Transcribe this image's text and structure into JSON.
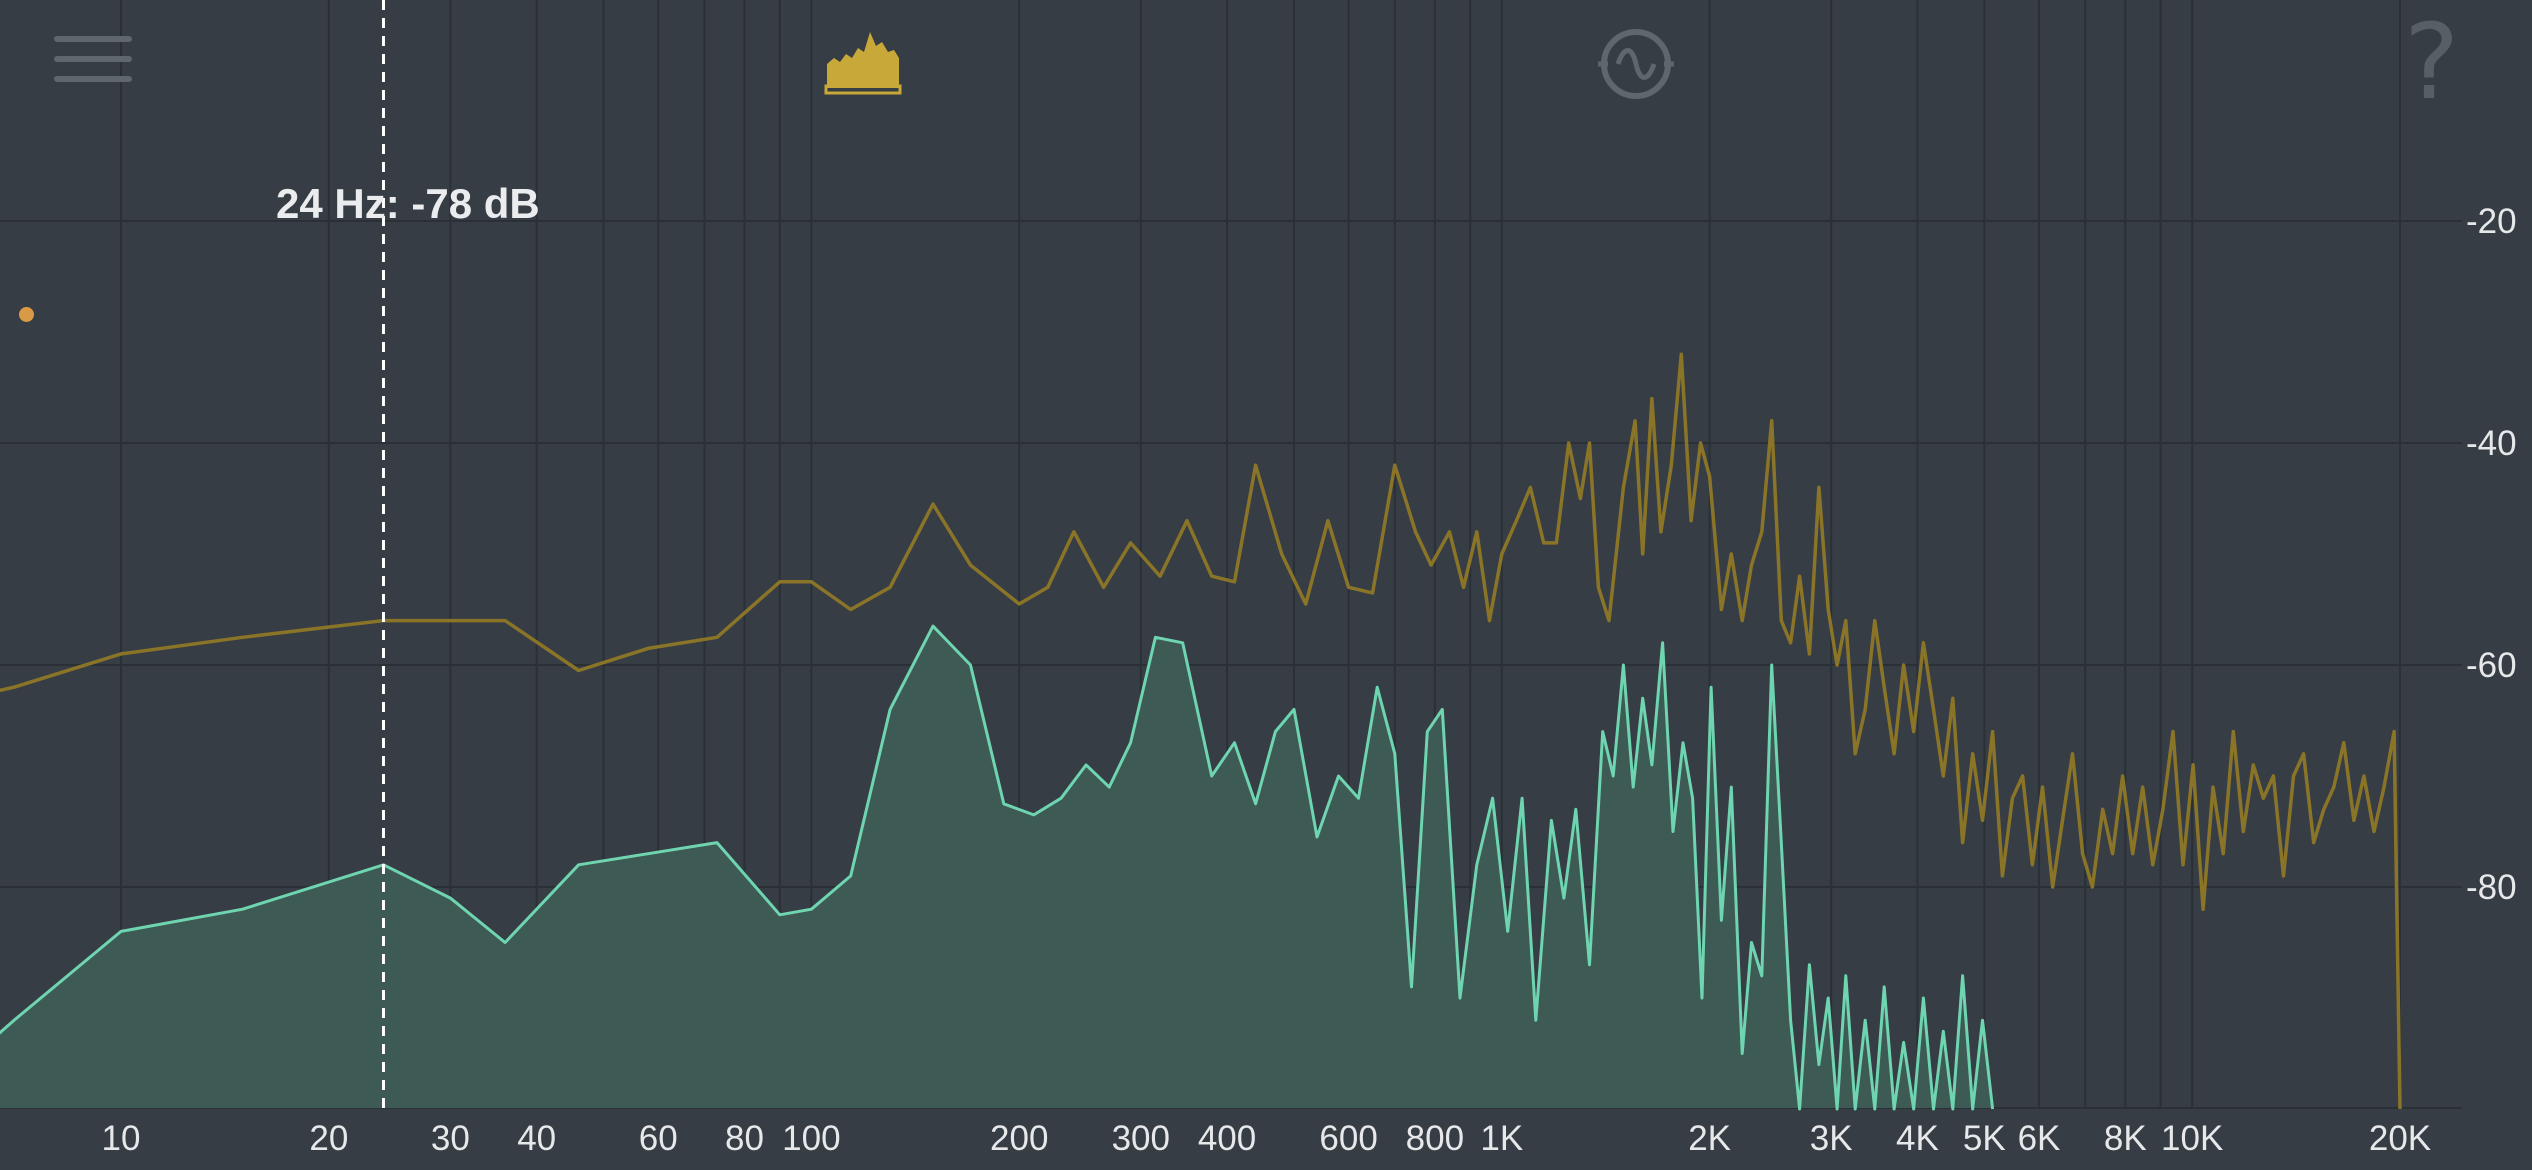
{
  "toolbar": {
    "menu_icon": "hamburger-menu-icon",
    "spectrum_icon": "spectrum-view-icon",
    "waveform_icon": "waveform-circle-icon",
    "help_glyph": "?"
  },
  "cursor_readout": "24 Hz: -78 dB",
  "colors": {
    "background": "#363d44",
    "grid": "#2a3036",
    "peak_line": "#8a7428",
    "spectrum_line": "#6fd4b0",
    "spectrum_fill": "#3e5a55",
    "cursor": "#ffffff",
    "marker_dot": "#d99a45",
    "active_icon": "#c9a83a",
    "inactive_icon": "#5f666d"
  },
  "chart_data": {
    "type": "area",
    "x_scale": "log",
    "x_unit": "Hz",
    "y_unit": "dB",
    "xlim": [
      5,
      22000
    ],
    "ylim": [
      -100,
      -10
    ],
    "grid": true,
    "x_ticks": [
      {
        "value": 10,
        "label": "10"
      },
      {
        "value": 20,
        "label": "20"
      },
      {
        "value": 30,
        "label": "30"
      },
      {
        "value": 40,
        "label": "40"
      },
      {
        "value": 60,
        "label": "60"
      },
      {
        "value": 80,
        "label": "80"
      },
      {
        "value": 100,
        "label": "100"
      },
      {
        "value": 200,
        "label": "200"
      },
      {
        "value": 300,
        "label": "300"
      },
      {
        "value": 400,
        "label": "400"
      },
      {
        "value": 600,
        "label": "600"
      },
      {
        "value": 800,
        "label": "800"
      },
      {
        "value": 1000,
        "label": "1K"
      },
      {
        "value": 2000,
        "label": "2K"
      },
      {
        "value": 3000,
        "label": "3K"
      },
      {
        "value": 4000,
        "label": "4K"
      },
      {
        "value": 5000,
        "label": "5K"
      },
      {
        "value": 6000,
        "label": "6K"
      },
      {
        "value": 8000,
        "label": "8K"
      },
      {
        "value": 10000,
        "label": "10K"
      },
      {
        "value": 20000,
        "label": "20K"
      }
    ],
    "y_ticks": [
      {
        "value": -20,
        "label": "-20"
      },
      {
        "value": -40,
        "label": "-40"
      },
      {
        "value": -60,
        "label": "-60"
      },
      {
        "value": -80,
        "label": "-80"
      }
    ],
    "cursor": {
      "freq": 24,
      "db": -78
    },
    "series": [
      {
        "id": "peak_hold",
        "style": "line",
        "points": [
          [
            5,
            -64
          ],
          [
            7,
            -62
          ],
          [
            10,
            -59
          ],
          [
            15,
            -57.5
          ],
          [
            24,
            -56
          ],
          [
            30,
            -56
          ],
          [
            36,
            -56
          ],
          [
            46,
            -60.5
          ],
          [
            58,
            -58.5
          ],
          [
            73,
            -57.5
          ],
          [
            90,
            -52.5
          ],
          [
            100,
            -52.5
          ],
          [
            114,
            -55
          ],
          [
            130,
            -53
          ],
          [
            150,
            -45.5
          ],
          [
            170,
            -51
          ],
          [
            200,
            -54.5
          ],
          [
            220,
            -53
          ],
          [
            240,
            -48
          ],
          [
            265,
            -53
          ],
          [
            290,
            -49
          ],
          [
            320,
            -52
          ],
          [
            350,
            -47
          ],
          [
            380,
            -52
          ],
          [
            410,
            -52.5
          ],
          [
            440,
            -42
          ],
          [
            480,
            -50
          ],
          [
            520,
            -54.5
          ],
          [
            560,
            -47
          ],
          [
            600,
            -53
          ],
          [
            650,
            -53.5
          ],
          [
            700,
            -42
          ],
          [
            750,
            -48
          ],
          [
            790,
            -51
          ],
          [
            840,
            -48
          ],
          [
            880,
            -53
          ],
          [
            920,
            -48
          ],
          [
            960,
            -56
          ],
          [
            1000,
            -50
          ],
          [
            1050,
            -47
          ],
          [
            1100,
            -44
          ],
          [
            1150,
            -49
          ],
          [
            1200,
            -49
          ],
          [
            1250,
            -40
          ],
          [
            1300,
            -45
          ],
          [
            1340,
            -40
          ],
          [
            1380,
            -53
          ],
          [
            1430,
            -56
          ],
          [
            1500,
            -44
          ],
          [
            1560,
            -38
          ],
          [
            1600,
            -50
          ],
          [
            1650,
            -36
          ],
          [
            1700,
            -48
          ],
          [
            1760,
            -42
          ],
          [
            1820,
            -32
          ],
          [
            1880,
            -47
          ],
          [
            1940,
            -40
          ],
          [
            2000,
            -43
          ],
          [
            2080,
            -55
          ],
          [
            2150,
            -50
          ],
          [
            2230,
            -56
          ],
          [
            2300,
            -51
          ],
          [
            2380,
            -48
          ],
          [
            2460,
            -38
          ],
          [
            2540,
            -56
          ],
          [
            2620,
            -58
          ],
          [
            2700,
            -52
          ],
          [
            2790,
            -59
          ],
          [
            2880,
            -44
          ],
          [
            2970,
            -55
          ],
          [
            3060,
            -60
          ],
          [
            3150,
            -56
          ],
          [
            3250,
            -68
          ],
          [
            3360,
            -64
          ],
          [
            3470,
            -56
          ],
          [
            3580,
            -62
          ],
          [
            3700,
            -68
          ],
          [
            3820,
            -60
          ],
          [
            3950,
            -66
          ],
          [
            4080,
            -58
          ],
          [
            4220,
            -64
          ],
          [
            4360,
            -70
          ],
          [
            4500,
            -63
          ],
          [
            4650,
            -76
          ],
          [
            4810,
            -68
          ],
          [
            4970,
            -74
          ],
          [
            5140,
            -66
          ],
          [
            5310,
            -79
          ],
          [
            5490,
            -72
          ],
          [
            5680,
            -70
          ],
          [
            5870,
            -78
          ],
          [
            6070,
            -71
          ],
          [
            6280,
            -80
          ],
          [
            6490,
            -74
          ],
          [
            6710,
            -68
          ],
          [
            6940,
            -77
          ],
          [
            7170,
            -80
          ],
          [
            7420,
            -73
          ],
          [
            7670,
            -77
          ],
          [
            7930,
            -70
          ],
          [
            8200,
            -77
          ],
          [
            8480,
            -71
          ],
          [
            8770,
            -78
          ],
          [
            9070,
            -73
          ],
          [
            9380,
            -66
          ],
          [
            9700,
            -78
          ],
          [
            10030,
            -69
          ],
          [
            10370,
            -82
          ],
          [
            10720,
            -71
          ],
          [
            11090,
            -77
          ],
          [
            11470,
            -66
          ],
          [
            11860,
            -75
          ],
          [
            12260,
            -69
          ],
          [
            12680,
            -72
          ],
          [
            13110,
            -70
          ],
          [
            13560,
            -79
          ],
          [
            14020,
            -70
          ],
          [
            14500,
            -68
          ],
          [
            15000,
            -76
          ],
          [
            15510,
            -73
          ],
          [
            16040,
            -71
          ],
          [
            16580,
            -67
          ],
          [
            17150,
            -74
          ],
          [
            17730,
            -70
          ],
          [
            18340,
            -75
          ],
          [
            18960,
            -71
          ],
          [
            19610,
            -66
          ],
          [
            20000,
            -100
          ]
        ]
      },
      {
        "id": "live_spectrum",
        "style": "filled-line",
        "points": [
          [
            5,
            -100
          ],
          [
            7,
            -92
          ],
          [
            10,
            -84
          ],
          [
            15,
            -82
          ],
          [
            24,
            -78
          ],
          [
            30,
            -81
          ],
          [
            36,
            -85
          ],
          [
            46,
            -78
          ],
          [
            58,
            -77
          ],
          [
            73,
            -76
          ],
          [
            90,
            -82.5
          ],
          [
            100,
            -82
          ],
          [
            114,
            -79
          ],
          [
            130,
            -64
          ],
          [
            150,
            -56.5
          ],
          [
            170,
            -60
          ],
          [
            190,
            -72.5
          ],
          [
            210,
            -73.5
          ],
          [
            230,
            -72
          ],
          [
            250,
            -69
          ],
          [
            270,
            -71
          ],
          [
            290,
            -67
          ],
          [
            315,
            -57.5
          ],
          [
            345,
            -58
          ],
          [
            380,
            -70
          ],
          [
            410,
            -67
          ],
          [
            440,
            -72.5
          ],
          [
            470,
            -66
          ],
          [
            500,
            -64
          ],
          [
            540,
            -75.5
          ],
          [
            580,
            -70
          ],
          [
            620,
            -72
          ],
          [
            660,
            -62
          ],
          [
            700,
            -68
          ],
          [
            740,
            -89
          ],
          [
            780,
            -66
          ],
          [
            820,
            -64
          ],
          [
            870,
            -90
          ],
          [
            920,
            -78
          ],
          [
            970,
            -72
          ],
          [
            1020,
            -84
          ],
          [
            1070,
            -72
          ],
          [
            1120,
            -92
          ],
          [
            1180,
            -74
          ],
          [
            1230,
            -81
          ],
          [
            1280,
            -73
          ],
          [
            1340,
            -87
          ],
          [
            1400,
            -66
          ],
          [
            1450,
            -70
          ],
          [
            1500,
            -60
          ],
          [
            1550,
            -71
          ],
          [
            1600,
            -63
          ],
          [
            1650,
            -69
          ],
          [
            1710,
            -58
          ],
          [
            1770,
            -75
          ],
          [
            1830,
            -67
          ],
          [
            1890,
            -72
          ],
          [
            1950,
            -90
          ],
          [
            2010,
            -62
          ],
          [
            2080,
            -83
          ],
          [
            2150,
            -71
          ],
          [
            2230,
            -95
          ],
          [
            2300,
            -85
          ],
          [
            2380,
            -88
          ],
          [
            2460,
            -60
          ],
          [
            2540,
            -76
          ],
          [
            2620,
            -92
          ],
          [
            2700,
            -100
          ],
          [
            2790,
            -87
          ],
          [
            2880,
            -96
          ],
          [
            2970,
            -90
          ],
          [
            3060,
            -100
          ],
          [
            3150,
            -88
          ],
          [
            3250,
            -100
          ],
          [
            3360,
            -92
          ],
          [
            3470,
            -100
          ],
          [
            3580,
            -89
          ],
          [
            3700,
            -100
          ],
          [
            3820,
            -94
          ],
          [
            3950,
            -100
          ],
          [
            4080,
            -90
          ],
          [
            4220,
            -100
          ],
          [
            4360,
            -93
          ],
          [
            4500,
            -100
          ],
          [
            4650,
            -88
          ],
          [
            4810,
            -100
          ],
          [
            4970,
            -92
          ],
          [
            5140,
            -100
          ]
        ]
      }
    ]
  }
}
